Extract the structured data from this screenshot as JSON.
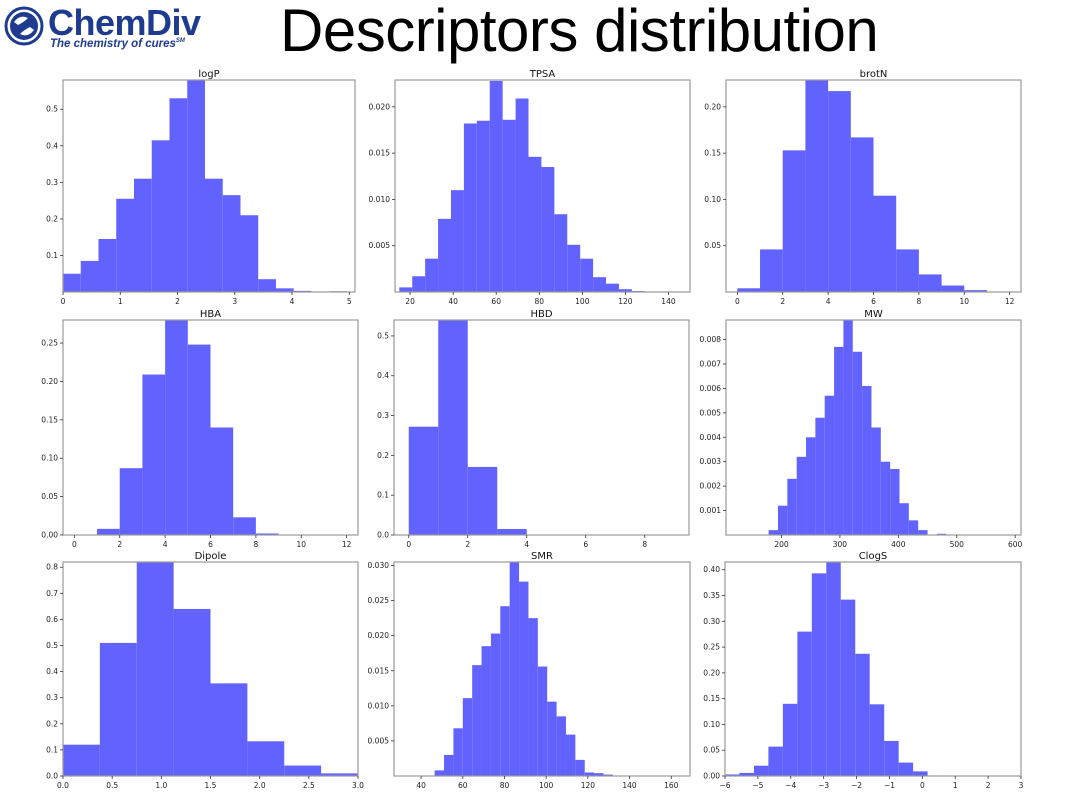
{
  "header": {
    "logo_name": "ChemDiv",
    "logo_tagline": "The chemistry of cures",
    "logo_tagline_mark": "SM",
    "title": "Descriptors distribution"
  },
  "colors": {
    "bar_fill": "#6262ff",
    "bar_edge": "#4b4be6",
    "axes": "#9a9a9a",
    "logo": "#1f3b8f"
  },
  "chart_data": [
    {
      "type": "bar",
      "title": "logP",
      "xlabel": "",
      "ylabel": "",
      "bin_edges": [
        0,
        0.31,
        0.62,
        0.93,
        1.24,
        1.55,
        1.86,
        2.17,
        2.48,
        2.79,
        3.1,
        3.41,
        3.72,
        4.03,
        4.34,
        4.65,
        4.96
      ],
      "values": [
        0.05,
        0.085,
        0.145,
        0.255,
        0.31,
        0.415,
        0.53,
        0.58,
        0.31,
        0.265,
        0.21,
        0.035,
        0.01,
        0.003,
        0.0,
        0.002
      ],
      "xlim": [
        0,
        5.1
      ],
      "ylim": [
        0,
        0.58
      ],
      "xticks": [
        0,
        1,
        2,
        3,
        4,
        5
      ],
      "xtick_labels": [
        "0",
        "1",
        "2",
        "3",
        "4",
        "5"
      ],
      "yticks": [
        0.1,
        0.2,
        0.3,
        0.4,
        0.5
      ],
      "ytick_labels": [
        "0.1",
        "0.2",
        "0.3",
        "0.4",
        "0.5"
      ],
      "grid": false
    },
    {
      "type": "bar",
      "title": "TPSA",
      "xlabel": "",
      "ylabel": "",
      "bin_edges": [
        15,
        21,
        27,
        33,
        39,
        45,
        51,
        57,
        63,
        69,
        75,
        81,
        87,
        93,
        99,
        105,
        111,
        117,
        123,
        129
      ],
      "values": [
        0.0005,
        0.0017,
        0.0036,
        0.0079,
        0.011,
        0.0182,
        0.0185,
        0.0228,
        0.0186,
        0.0209,
        0.0146,
        0.0135,
        0.0084,
        0.0051,
        0.0036,
        0.0016,
        0.0009,
        0.0003,
        0.0001
      ],
      "xlim": [
        13,
        150
      ],
      "ylim": [
        0,
        0.0229
      ],
      "xticks": [
        20,
        40,
        60,
        80,
        100,
        120,
        140
      ],
      "xtick_labels": [
        "20",
        "40",
        "60",
        "80",
        "100",
        "120",
        "140"
      ],
      "yticks": [
        0.005,
        0.01,
        0.015,
        0.02
      ],
      "ytick_labels": [
        "0.005",
        "0.010",
        "0.015",
        "0.020"
      ],
      "grid": false
    },
    {
      "type": "bar",
      "title": "brotN",
      "xlabel": "",
      "ylabel": "",
      "bin_edges": [
        0,
        1,
        2,
        3,
        4,
        5,
        6,
        7,
        8,
        9,
        10,
        11
      ],
      "values": [
        0.004,
        0.046,
        0.153,
        0.229,
        0.217,
        0.167,
        0.104,
        0.046,
        0.019,
        0.007,
        0.002
      ],
      "xlim": [
        -0.5,
        12.5
      ],
      "ylim": [
        0,
        0.229
      ],
      "xticks": [
        0,
        2,
        4,
        6,
        8,
        10,
        12
      ],
      "xtick_labels": [
        "0",
        "2",
        "4",
        "6",
        "8",
        "10",
        "12"
      ],
      "yticks": [
        0.05,
        0.1,
        0.15,
        0.2
      ],
      "ytick_labels": [
        "0.05",
        "0.10",
        "0.15",
        "0.20"
      ],
      "grid": false
    },
    {
      "type": "bar",
      "title": "HBA",
      "xlabel": "",
      "ylabel": "",
      "bin_edges": [
        1,
        2,
        3,
        4,
        5,
        6,
        7,
        8,
        9,
        10
      ],
      "values": [
        0.008,
        0.087,
        0.209,
        0.28,
        0.248,
        0.14,
        0.023,
        0.002,
        0.0005
      ],
      "xlim": [
        -0.5,
        12.5
      ],
      "ylim": [
        0,
        0.28
      ],
      "xticks": [
        0,
        2,
        4,
        6,
        8,
        10,
        12
      ],
      "xtick_labels": [
        "0",
        "2",
        "4",
        "6",
        "8",
        "10",
        "12"
      ],
      "yticks": [
        0,
        0.05,
        0.1,
        0.15,
        0.2,
        0.25
      ],
      "ytick_labels": [
        "0.00",
        "0.05",
        "0.10",
        "0.15",
        "0.20",
        "0.25"
      ],
      "grid": false
    },
    {
      "type": "bar",
      "title": "HBD",
      "xlabel": "",
      "ylabel": "",
      "bin_edges": [
        0,
        1,
        2,
        3,
        4,
        5
      ],
      "values": [
        0.272,
        0.54,
        0.171,
        0.015,
        0.001
      ],
      "xlim": [
        -0.5,
        9.5
      ],
      "ylim": [
        0,
        0.54
      ],
      "xticks": [
        0,
        2,
        4,
        6,
        8
      ],
      "xtick_labels": [
        "0",
        "2",
        "4",
        "6",
        "8"
      ],
      "yticks": [
        0,
        0.1,
        0.2,
        0.3,
        0.4,
        0.5
      ],
      "ytick_labels": [
        "0.0",
        "0.1",
        "0.2",
        "0.3",
        "0.4",
        "0.5"
      ],
      "grid": false
    },
    {
      "type": "bar",
      "title": "MW",
      "xlabel": "",
      "ylabel": "",
      "bin_edges": [
        178,
        194,
        210,
        226,
        242,
        258,
        274,
        290,
        306,
        322,
        338,
        354,
        370,
        386,
        402,
        418,
        434,
        450,
        466,
        482
      ],
      "values": [
        0.0002,
        0.0012,
        0.0023,
        0.0032,
        0.004,
        0.0048,
        0.0057,
        0.0077,
        0.0088,
        0.0075,
        0.0061,
        0.0044,
        0.003,
        0.0027,
        0.0013,
        0.0006,
        0.0002,
        0.0,
        5e-05
      ],
      "xlim": [
        105,
        610
      ],
      "ylim": [
        0,
        0.0088
      ],
      "xticks": [
        200,
        300,
        400,
        500,
        600
      ],
      "xtick_labels": [
        "200",
        "300",
        "400",
        "500",
        "600"
      ],
      "yticks": [
        0.001,
        0.002,
        0.003,
        0.004,
        0.005,
        0.006,
        0.007,
        0.008
      ],
      "ytick_labels": [
        "0.001",
        "0.002",
        "0.003",
        "0.004",
        "0.005",
        "0.006",
        "0.007",
        "0.008"
      ],
      "grid": false
    },
    {
      "type": "bar",
      "title": "Dipole",
      "xlabel": "",
      "ylabel": "",
      "bin_edges": [
        0,
        0.375,
        0.75,
        1.125,
        1.5,
        1.875,
        2.25,
        2.625,
        3.0
      ],
      "values": [
        0.12,
        0.51,
        0.82,
        0.64,
        0.355,
        0.133,
        0.04,
        0.01
      ],
      "xlim": [
        0,
        3.0
      ],
      "ylim": [
        0,
        0.82
      ],
      "xticks": [
        0,
        0.5,
        1,
        1.5,
        2,
        2.5,
        3
      ],
      "xtick_labels": [
        "0.0",
        "0.5",
        "1.0",
        "1.5",
        "2.0",
        "2.5",
        "3.0"
      ],
      "yticks": [
        0,
        0.1,
        0.2,
        0.3,
        0.4,
        0.5,
        0.6,
        0.7,
        0.8
      ],
      "ytick_labels": [
        "0.0",
        "0.1",
        "0.2",
        "0.3",
        "0.4",
        "0.5",
        "0.6",
        "0.7",
        "0.8"
      ],
      "grid": false
    },
    {
      "type": "bar",
      "title": "SMR",
      "xlabel": "",
      "ylabel": "",
      "bin_edges": [
        46.5,
        51,
        55.5,
        60,
        64.5,
        69,
        73.5,
        78,
        82.5,
        87,
        91.5,
        96,
        100.5,
        105,
        109.5,
        114,
        118.5,
        123,
        127.5,
        132
      ],
      "values": [
        0.0008,
        0.003,
        0.0068,
        0.0111,
        0.0158,
        0.0185,
        0.0203,
        0.0242,
        0.0305,
        0.0277,
        0.0225,
        0.0156,
        0.0106,
        0.0085,
        0.0059,
        0.0023,
        0.0005,
        0.0004,
        0.0002
      ],
      "xlim": [
        27,
        169
      ],
      "ylim": [
        0,
        0.0305
      ],
      "xticks": [
        40,
        60,
        80,
        100,
        120,
        140,
        160
      ],
      "xtick_labels": [
        "40",
        "60",
        "80",
        "100",
        "120",
        "140",
        "160"
      ],
      "yticks": [
        0.005,
        0.01,
        0.015,
        0.02,
        0.025,
        0.03
      ],
      "ytick_labels": [
        "0.005",
        "0.010",
        "0.015",
        "0.020",
        "0.025",
        "0.030"
      ],
      "grid": false
    },
    {
      "type": "bar",
      "title": "ClogS",
      "xlabel": "",
      "ylabel": "",
      "bin_edges": [
        -6,
        -5.56,
        -5.12,
        -4.68,
        -4.24,
        -3.8,
        -3.36,
        -2.92,
        -2.48,
        -2.04,
        -1.6,
        -1.16,
        -0.72,
        -0.28,
        0.16,
        0.6,
        1.04
      ],
      "values": [
        0.003,
        0.006,
        0.02,
        0.057,
        0.14,
        0.28,
        0.393,
        0.415,
        0.342,
        0.237,
        0.139,
        0.068,
        0.026,
        0.009,
        0.001,
        0.0
      ],
      "xlim": [
        -6,
        3
      ],
      "ylim": [
        0,
        0.415
      ],
      "xticks": [
        -6,
        -5,
        -4,
        -3,
        -2,
        -1,
        0,
        1,
        2,
        3
      ],
      "xtick_labels": [
        "−6",
        "−5",
        "−4",
        "−3",
        "−2",
        "−1",
        "0",
        "1",
        "2",
        "3"
      ],
      "yticks": [
        0,
        0.05,
        0.1,
        0.15,
        0.2,
        0.25,
        0.3,
        0.35,
        0.4
      ],
      "ytick_labels": [
        "0.00",
        "0.05",
        "0.10",
        "0.15",
        "0.20",
        "0.25",
        "0.30",
        "0.35",
        "0.40"
      ],
      "grid": false
    }
  ]
}
